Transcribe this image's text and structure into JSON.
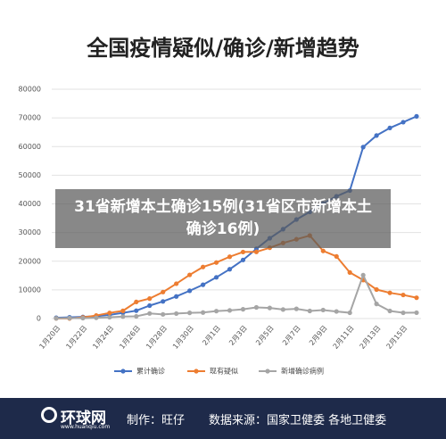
{
  "chart_data": {
    "type": "line",
    "title": "全国疫情疑似/确诊/新增趋势",
    "categories": [
      "1月20日",
      null,
      "1月22日",
      null,
      "1月24日",
      null,
      "1月26日",
      null,
      "1月28日",
      null,
      "1月30日",
      null,
      "2月1日",
      null,
      "2月3日",
      null,
      "2月5日",
      null,
      "2月7日",
      null,
      "2月9日",
      null,
      "2月11日",
      null,
      "2月13日",
      null,
      "2月15日",
      null
    ],
    "series": [
      {
        "name": "累计确诊",
        "color": "#4472c4",
        "values": [
          291,
          440,
          571,
          830,
          1287,
          1975,
          2744,
          4515,
          5974,
          7711,
          9692,
          11791,
          14380,
          17205,
          20438,
          24324,
          28018,
          31161,
          34546,
          37198,
          40171,
          42638,
          44653,
          59804,
          63851,
          66492,
          68500,
          70548
        ]
      },
      {
        "name": "现有疑似",
        "color": "#ed7d31",
        "values": [
          54,
          37,
          393,
          1072,
          1965,
          2684,
          5794,
          6973,
          9239,
          12167,
          15238,
          17988,
          19544,
          21558,
          23214,
          23260,
          24702,
          26359,
          27657,
          28942,
          23589,
          21675,
          16067,
          13435,
          10109,
          8969,
          8228,
          7264
        ]
      },
      {
        "name": "新增确诊病例",
        "color": "#a5a5a5",
        "values": [
          77,
          149,
          131,
          259,
          444,
          688,
          769,
          1771,
          1459,
          1737,
          1982,
          2102,
          2590,
          2829,
          3235,
          3887,
          3694,
          3143,
          3385,
          2652,
          2973,
          2467,
          2015,
          15152,
          5090,
          2641,
          2009,
          2048
        ]
      }
    ],
    "ylim": [
      0,
      80000
    ],
    "yticks": [
      0,
      10000,
      20000,
      30000,
      40000,
      50000,
      60000,
      70000,
      80000
    ],
    "grid": true,
    "legend": "bottom"
  },
  "overlay": "31省新增本土确诊15例(31省区市新增本土确诊16例)",
  "footer": {
    "logo": "环球网",
    "logo_url": "www.huanqiu.com",
    "author": "制作：旺仔",
    "source": "数据来源：国家卫健委 各地卫健委"
  }
}
